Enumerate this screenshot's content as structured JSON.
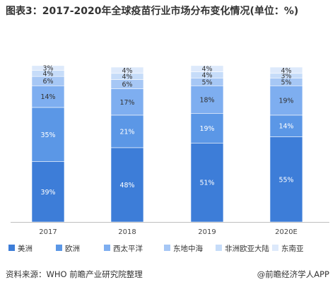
{
  "title": "图表3：2017-2020年全球疫苗行业市场分布变化情况(单位：%)",
  "source": "资料来源：WHO 前瞻产业研究院整理",
  "brand": "@前瞻经济学人APP",
  "chart_data": {
    "type": "bar",
    "stacked": true,
    "categories": [
      "2017",
      "2018",
      "2019",
      "2020E"
    ],
    "series": [
      {
        "name": "美洲",
        "values": [
          39,
          48,
          51,
          55
        ],
        "color": "#3d7dd8"
      },
      {
        "name": "欧洲",
        "values": [
          35,
          21,
          19,
          14
        ],
        "color": "#5b97e6"
      },
      {
        "name": "西太平洋",
        "values": [
          14,
          17,
          18,
          19
        ],
        "color": "#7eaef0"
      },
      {
        "name": "东地中海",
        "values": [
          6,
          6,
          5,
          5
        ],
        "color": "#a6c7f5"
      },
      {
        "name": "非洲欧亚大陆",
        "values": [
          4,
          4,
          4,
          3
        ],
        "color": "#c6dcf9"
      },
      {
        "name": "东南亚",
        "values": [
          3,
          4,
          4,
          4
        ],
        "color": "#dde9fb"
      }
    ],
    "ylim": [
      0,
      100
    ],
    "legend_position": "bottom"
  }
}
